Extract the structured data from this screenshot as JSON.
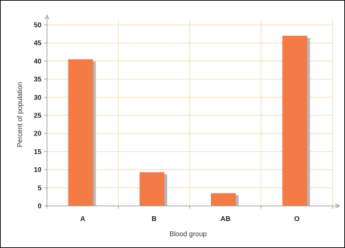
{
  "chart_data": {
    "type": "bar",
    "categories": [
      "A",
      "B",
      "AB",
      "O"
    ],
    "values": [
      40.5,
      9.3,
      3.5,
      47
    ],
    "title": "",
    "xlabel": "Blood group",
    "ylabel": "Percent of population",
    "ylim": [
      0,
      50
    ],
    "yticks": [
      "0",
      "5",
      "10",
      "15",
      "20",
      "25",
      "30",
      "35",
      "40",
      "45",
      "50"
    ],
    "grid": true,
    "legend": "none"
  },
  "colors": {
    "bar": "#f47a46",
    "bar_shadow": "#b8b8b8",
    "grid": "#f3dfb2",
    "axis": "#9a9a9a"
  }
}
